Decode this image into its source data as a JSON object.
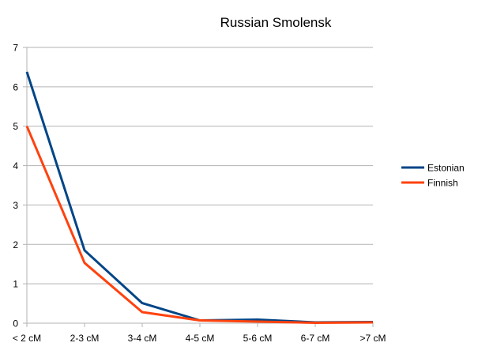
{
  "chart_data": {
    "type": "line",
    "title": "Russian Smolensk",
    "xlabel": "",
    "ylabel": "",
    "categories": [
      "< 2 cM",
      "2-3 cM",
      "3-4 cM",
      "4-5 cM",
      "5-6 cM",
      "6-7 cM",
      ">7 cM"
    ],
    "ylim": [
      0,
      7
    ],
    "yticks": [
      0,
      1,
      2,
      3,
      4,
      5,
      6,
      7
    ],
    "grid": true,
    "legend_position": "right",
    "series": [
      {
        "name": "Estonian",
        "color": "#004586",
        "values": [
          6.38,
          1.85,
          0.51,
          0.07,
          0.09,
          0.02,
          0.03
        ]
      },
      {
        "name": "Finnish",
        "color": "#ff420e",
        "values": [
          5.0,
          1.53,
          0.28,
          0.07,
          0.04,
          0.01,
          0.02
        ]
      }
    ]
  }
}
